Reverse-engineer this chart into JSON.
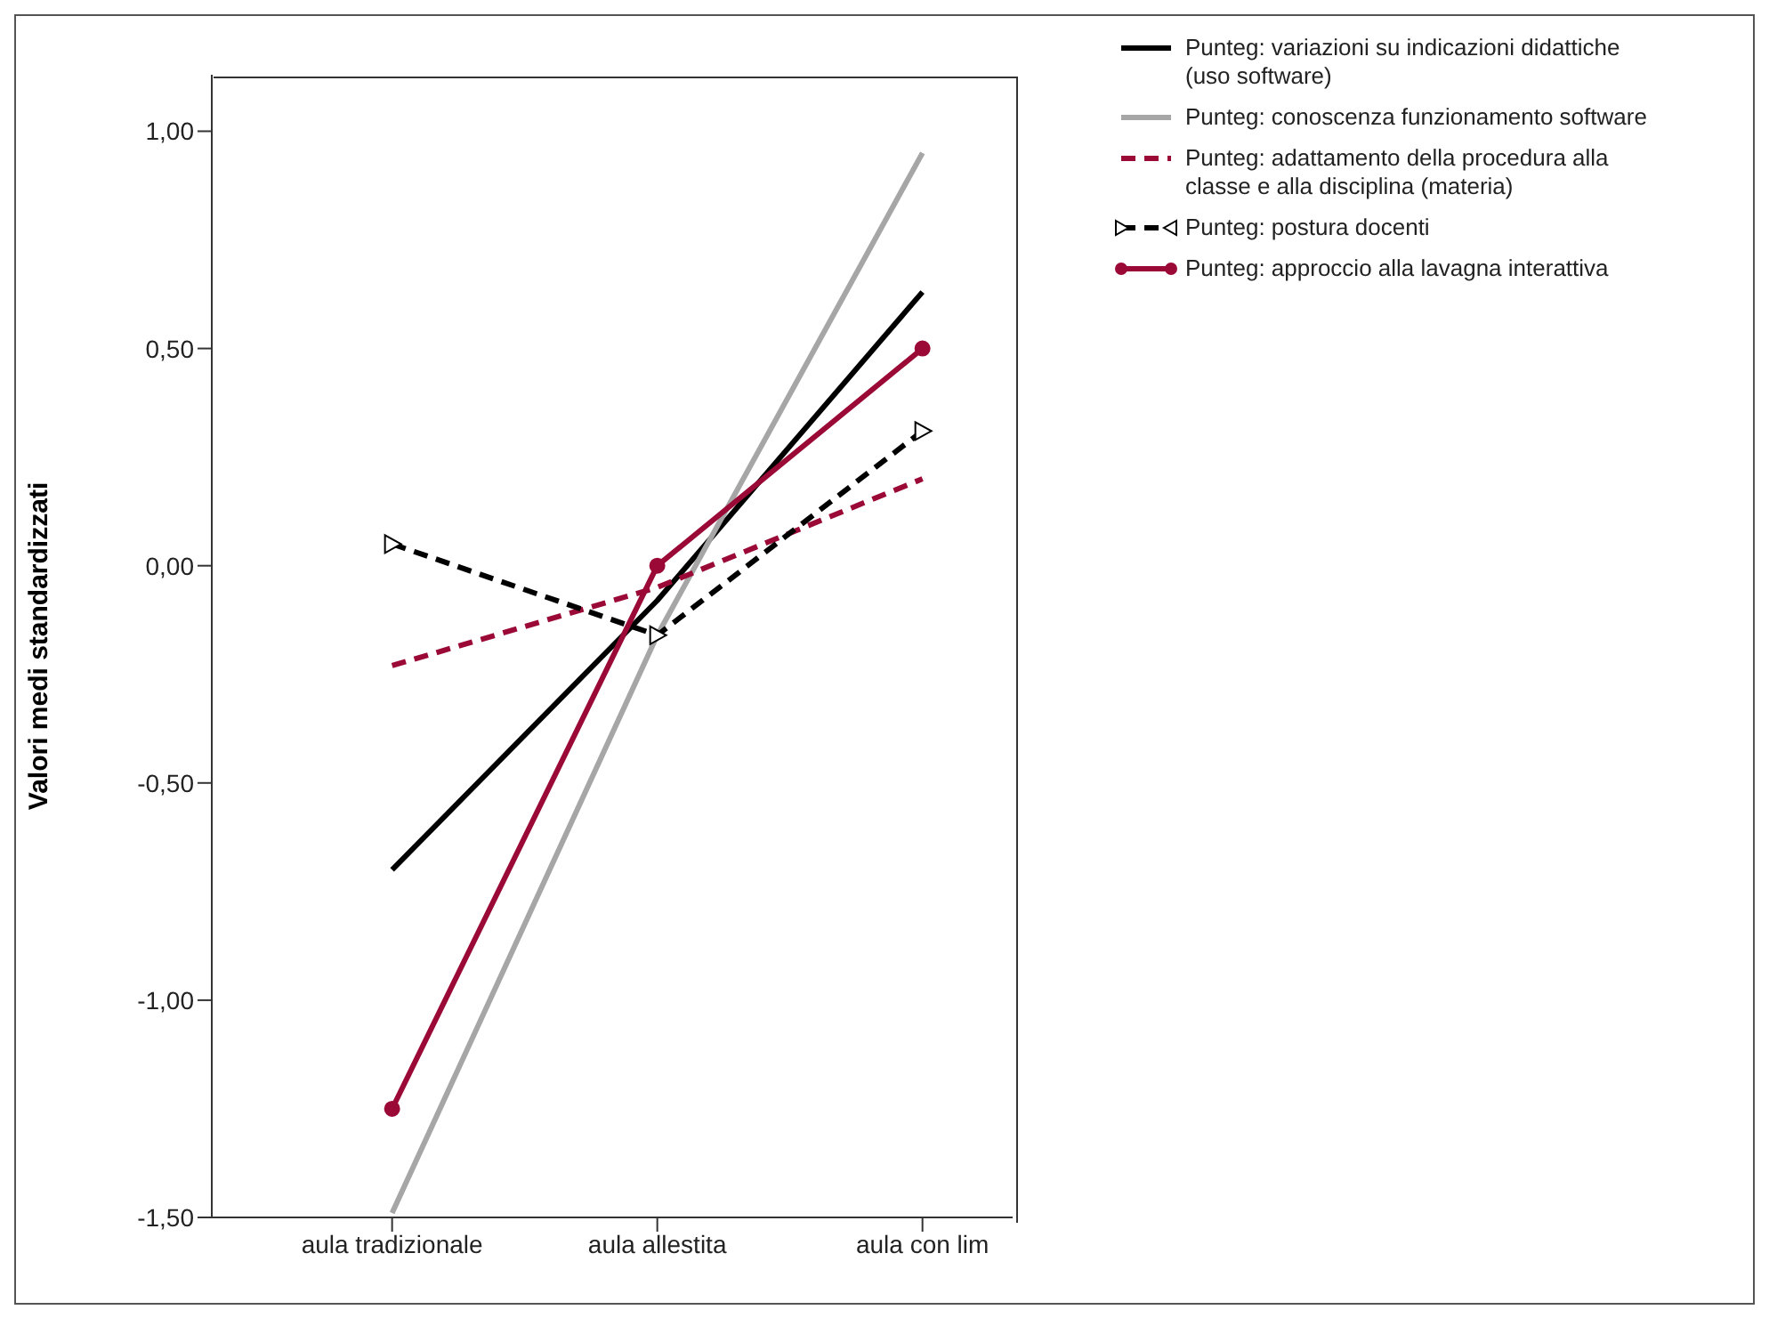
{
  "chart_data": {
    "type": "line",
    "ylabel": "Valori medi standardizzati",
    "categories": [
      "aula tradizionale",
      "aula allestita",
      "aula con lim"
    ],
    "ylim": [
      -1.5,
      1.13
    ],
    "yticks": [
      {
        "value": -1.5,
        "label": "-1,50"
      },
      {
        "value": -1,
        "label": "-1,00"
      },
      {
        "value": -0.5,
        "label": "-0,50"
      },
      {
        "value": 0,
        "label": "0,00"
      },
      {
        "value": 0.5,
        "label": "0,50"
      },
      {
        "value": 1,
        "label": "1,00"
      }
    ],
    "grid": false,
    "legend": "top right",
    "series": [
      {
        "name": "Punteg:  variazioni su indicazioni didattiche (uso software)",
        "color": "#000000",
        "values": [
          -0.7,
          -0.08,
          0.63
        ],
        "line_style": "solid",
        "marker": "none"
      },
      {
        "name": "Punteg:  conoscenza funzionamento software",
        "color": "#a6a6a6",
        "values": [
          -1.49,
          -0.16,
          0.95
        ],
        "line_style": "solid",
        "marker": "none"
      },
      {
        "name": "Punteg: adattamento della procedura alla classe e alla disciplina (materia)",
        "color": "#9b0a37",
        "values": [
          -0.23,
          -0.05,
          0.2
        ],
        "line_style": "dashed",
        "marker": "none"
      },
      {
        "name": "Punteg:  postura docenti",
        "color": "#000000",
        "values": [
          0.05,
          -0.16,
          0.31
        ],
        "line_style": "dashed",
        "marker": "triangle"
      },
      {
        "name": "Punteg:  approccio alla lavagna interattiva",
        "color": "#9b0a37",
        "values": [
          -1.25,
          0.0,
          0.5
        ],
        "line_style": "solid",
        "marker": "circle"
      }
    ]
  }
}
